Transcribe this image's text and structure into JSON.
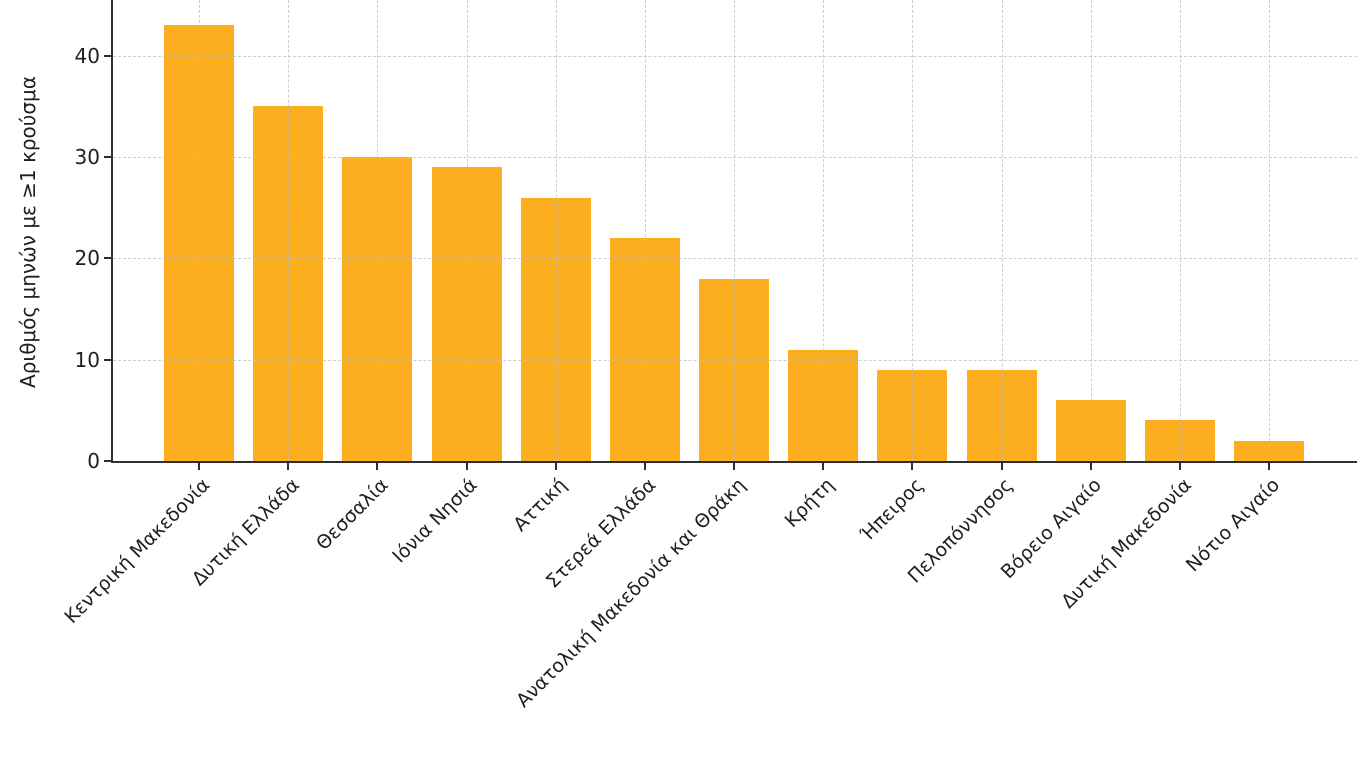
{
  "figure": {
    "background": "#ffffff",
    "axis_color": "#2f2f2f",
    "grid_color": "#bebebe"
  },
  "chart_data": {
    "type": "bar",
    "title": "",
    "xlabel": "",
    "ylabel": "Αριθμός μηνών με ≥1 κρούσμα",
    "categories": [
      "Κεντρική Μακεδονία",
      "Δυτική Ελλάδα",
      "Θεσσαλία",
      "Ιόνια Νησιά",
      "Αττική",
      "Στερεά Ελλάδα",
      "Ανατολική Μακεδονία και Θράκη",
      "Κρήτη",
      "Ήπειρος",
      "Πελοπόννησος",
      "Βόρειο Αιγαίο",
      "Δυτική Μακεδονία",
      "Νότιο Αιγαίο"
    ],
    "values": [
      43,
      35,
      30,
      29,
      26,
      22,
      18,
      11,
      9,
      9,
      6,
      4,
      2
    ],
    "bar_color": "#FCAE1E",
    "ylim": [
      0,
      45.5
    ],
    "yticks": [
      0,
      10,
      20,
      30,
      40
    ],
    "x_tick_rotation": 45,
    "grid": "both, dashed, drawn above bars",
    "legend": "none"
  }
}
